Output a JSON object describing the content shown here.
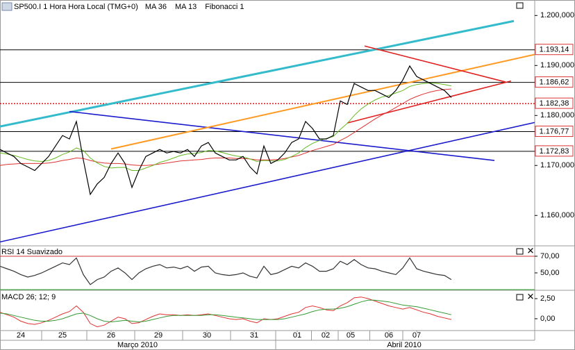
{
  "chart_data": [
    {
      "type": "line",
      "title": "SP500.I 1 Hora Hora Local (TMG+0)",
      "annotation": "Fibonacci 1",
      "color": "#000000",
      "x": [
        0,
        1,
        2,
        3,
        4,
        5,
        6,
        7,
        8,
        9,
        10,
        11,
        12,
        13,
        14,
        15,
        16,
        17,
        18,
        19,
        20,
        21,
        22,
        23,
        24,
        25,
        26,
        27,
        28,
        29,
        30,
        31,
        32,
        33,
        34,
        35,
        36,
        37,
        38,
        39,
        40,
        41,
        42,
        43,
        44,
        45,
        46,
        47,
        48,
        49,
        50,
        51,
        52,
        53,
        54,
        55,
        56,
        57,
        58,
        59,
        60,
        61,
        62,
        63,
        64,
        65
      ],
      "values": [
        1173.2,
        1172.5,
        1171.8,
        1170.4,
        1169.7,
        1169.0,
        1170.4,
        1171.8,
        1173.9,
        1176.0,
        1175.3,
        1178.8,
        1171.1,
        1164.2,
        1166.3,
        1167.6,
        1170.4,
        1172.5,
        1170.4,
        1165.6,
        1169.0,
        1171.8,
        1172.5,
        1173.2,
        1172.5,
        1172.8,
        1172.5,
        1173.2,
        1171.8,
        1173.9,
        1174.6,
        1172.5,
        1171.8,
        1171.1,
        1171.1,
        1171.8,
        1169.7,
        1168.3,
        1173.9,
        1170.4,
        1171.1,
        1172.5,
        1174.6,
        1175.3,
        1178.8,
        1177.4,
        1175.3,
        1175.3,
        1176.0,
        1182.9,
        1182.2,
        1186.4,
        1185.7,
        1185.0,
        1185.0,
        1184.3,
        1183.6,
        1185.0,
        1187.1,
        1189.9,
        1187.8,
        1187.1,
        1186.4,
        1185.7,
        1185.0,
        1183.6
      ],
      "series": [
        {
          "name": "MA 36",
          "color": "#e03030",
          "values": [
            1170.0,
            1170.2,
            1170.3,
            1170.4,
            1170.4,
            1170.4,
            1170.4,
            1170.5,
            1170.7,
            1171.0,
            1171.2,
            1171.5,
            1171.4,
            1171.0,
            1170.7,
            1170.5,
            1170.4,
            1170.4,
            1170.3,
            1170.1,
            1170.0,
            1170.0,
            1170.1,
            1170.3,
            1170.5,
            1170.7,
            1170.9,
            1171.0,
            1171.1,
            1171.2,
            1171.4,
            1171.5,
            1171.5,
            1171.5,
            1171.4,
            1171.4,
            1171.3,
            1171.1,
            1171.1,
            1171.1,
            1171.2,
            1171.4,
            1171.7,
            1172.0,
            1172.5,
            1173.0,
            1173.4,
            1173.8,
            1174.2,
            1175.0,
            1175.7,
            1176.6,
            1177.5,
            1178.4,
            1179.3,
            1180.1,
            1180.8,
            1181.6,
            1182.4,
            1183.2,
            1183.8,
            1184.3,
            1184.7,
            1185.0,
            1185.2,
            1185.3
          ]
        },
        {
          "name": "MA 13",
          "color": "#66bb22",
          "values": [
            1172.5,
            1172.3,
            1172.0,
            1171.6,
            1171.2,
            1170.9,
            1170.8,
            1171.0,
            1171.5,
            1172.2,
            1172.7,
            1173.5,
            1173.0,
            1171.5,
            1170.5,
            1169.8,
            1169.5,
            1169.6,
            1169.6,
            1169.0,
            1169.0,
            1169.5,
            1170.0,
            1170.6,
            1171.0,
            1171.5,
            1172.0,
            1172.3,
            1172.4,
            1172.6,
            1173.0,
            1172.9,
            1172.6,
            1172.2,
            1171.9,
            1171.7,
            1171.3,
            1170.8,
            1171.0,
            1170.9,
            1170.9,
            1171.2,
            1171.8,
            1172.5,
            1173.6,
            1174.4,
            1175.0,
            1175.4,
            1175.8,
            1177.2,
            1178.4,
            1180.0,
            1181.3,
            1182.3,
            1183.1,
            1183.7,
            1184.0,
            1184.5,
            1185.0,
            1185.8,
            1186.2,
            1186.4,
            1186.5,
            1186.4,
            1186.2,
            1185.9
          ]
        }
      ],
      "trendlines": [
        {
          "color": "#33bbcc",
          "x": [
            0,
            74
          ],
          "y": [
            1177.8,
            1198.9
          ]
        },
        {
          "color": "#1a1acc",
          "x": [
            10,
            71.2
          ],
          "y": [
            1180.8,
            1171.0
          ]
        },
        {
          "color": "#1a1acc",
          "x": [
            0,
            77
          ],
          "y": [
            1154.7,
            1178.6
          ]
        },
        {
          "color": "#ff9922",
          "x": [
            16,
            77
          ],
          "y": [
            1173.3,
            1192.2
          ]
        },
        {
          "color": "#e02020",
          "x": [
            52.5,
            72.8
          ],
          "y": [
            1193.9,
            1186.7
          ]
        },
        {
          "color": "#e02020",
          "x": [
            50,
            73.6
          ],
          "y": [
            1178.5,
            1186.9
          ]
        }
      ],
      "levels": [
        {
          "value": 1193.14,
          "label": "1.193,14",
          "color": "#000000"
        },
        {
          "value": 1186.62,
          "label": "1.186,62",
          "color": "#000000"
        },
        {
          "value": 1182.38,
          "label": "1.182,38",
          "color": "#dd0000",
          "dashed": true
        },
        {
          "value": 1176.77,
          "label": "1.176,77",
          "color": "#000000"
        },
        {
          "value": 1172.83,
          "label": "1.172,83",
          "color": "#000000"
        }
      ],
      "xlim": [
        0,
        77
      ],
      "ylim": [
        1154.2,
        1203.1
      ],
      "yticks": [
        {
          "value": 1200,
          "label": "1.200,000"
        },
        {
          "value": 1190,
          "label": "1.190,000"
        },
        {
          "value": 1180,
          "label": "1.180,000"
        },
        {
          "value": 1170,
          "label": "1.170,000"
        },
        {
          "value": 1160,
          "label": "1.160,000"
        }
      ],
      "xticks": [
        {
          "value": 3,
          "label": "24"
        },
        {
          "value": 9,
          "label": "25"
        },
        {
          "value": 16,
          "label": "26"
        },
        {
          "value": 22.8,
          "label": "29"
        },
        {
          "value": 29.8,
          "label": "30"
        },
        {
          "value": 36.6,
          "label": "31"
        },
        {
          "value": 42.8,
          "label": "01"
        },
        {
          "value": 46.9,
          "label": "02"
        },
        {
          "value": 50.5,
          "label": "05"
        },
        {
          "value": 56,
          "label": "06"
        },
        {
          "value": 60,
          "label": "07"
        }
      ],
      "periods": [
        {
          "value": 19.8,
          "label": "Março 2010"
        },
        {
          "value": 58.2,
          "label": "Abril 2010"
        }
      ]
    },
    {
      "type": "line",
      "title": "RSI 14 Suavizado",
      "color": "#333333",
      "values": [
        58,
        55,
        52,
        48,
        45,
        47,
        50,
        54,
        58,
        62,
        60,
        68,
        48,
        36,
        42,
        45,
        52,
        56,
        50,
        42,
        50,
        55,
        58,
        60,
        56,
        57,
        55,
        58,
        52,
        57,
        58,
        50,
        48,
        47,
        48,
        50,
        46,
        44,
        58,
        48,
        50,
        54,
        58,
        56,
        62,
        58,
        52,
        52,
        55,
        64,
        60,
        66,
        60,
        56,
        55,
        52,
        50,
        48,
        56,
        68,
        55,
        52,
        50,
        48,
        47,
        42
      ],
      "levels": [
        {
          "value": 70,
          "color": "#cc3333"
        },
        {
          "value": 30,
          "color": "#33aa33"
        }
      ],
      "ylim": [
        30.8,
        80.8
      ],
      "yticks": [
        {
          "value": 70,
          "label": "70,00"
        },
        {
          "value": 50,
          "label": "50,00"
        }
      ]
    },
    {
      "type": "line",
      "title": "MACD 26; 12; 9",
      "series": [
        {
          "color": "#e03030",
          "values": [
            0.8,
            0.5,
            0.2,
            -0.3,
            -0.6,
            -0.7,
            -0.5,
            -0.2,
            0.2,
            0.6,
            0.9,
            1.6,
            0.8,
            -0.6,
            -1.0,
            -0.8,
            -0.3,
            0.2,
            0.0,
            -0.6,
            -0.5,
            -0.1,
            0.3,
            0.6,
            0.5,
            0.5,
            0.4,
            0.5,
            0.4,
            0.5,
            0.6,
            0.4,
            0.2,
            0.0,
            -0.1,
            0.0,
            -0.3,
            -0.5,
            0.0,
            -0.1,
            0.0,
            0.3,
            0.6,
            0.8,
            1.4,
            1.6,
            1.4,
            1.1,
            1.0,
            1.6,
            2.0,
            2.6,
            2.7,
            2.5,
            2.2,
            1.9,
            1.6,
            1.4,
            1.2,
            1.4,
            1.1,
            0.8,
            0.6,
            0.3,
            0.1,
            -0.1
          ]
        },
        {
          "color": "#339933",
          "values": [
            0.7,
            0.6,
            0.4,
            0.2,
            0.0,
            -0.2,
            -0.3,
            -0.3,
            -0.2,
            0.0,
            0.3,
            0.6,
            0.7,
            0.4,
            0.0,
            -0.3,
            -0.4,
            -0.3,
            -0.2,
            -0.3,
            -0.4,
            -0.3,
            -0.1,
            0.1,
            0.3,
            0.4,
            0.4,
            0.4,
            0.4,
            0.4,
            0.5,
            0.5,
            0.4,
            0.3,
            0.2,
            0.1,
            0.0,
            -0.1,
            -0.1,
            -0.1,
            -0.1,
            0.0,
            0.2,
            0.4,
            0.6,
            0.9,
            1.1,
            1.2,
            1.2,
            1.3,
            1.5,
            1.8,
            2.1,
            2.3,
            2.3,
            2.2,
            2.1,
            1.9,
            1.7,
            1.6,
            1.5,
            1.3,
            1.1,
            0.9,
            0.7,
            0.5
          ]
        }
      ],
      "ylim": [
        -1.47,
        3.28
      ],
      "yticks": [
        {
          "value": 2.5,
          "label": "2,50"
        },
        {
          "value": 0,
          "label": "0,00"
        }
      ]
    }
  ]
}
